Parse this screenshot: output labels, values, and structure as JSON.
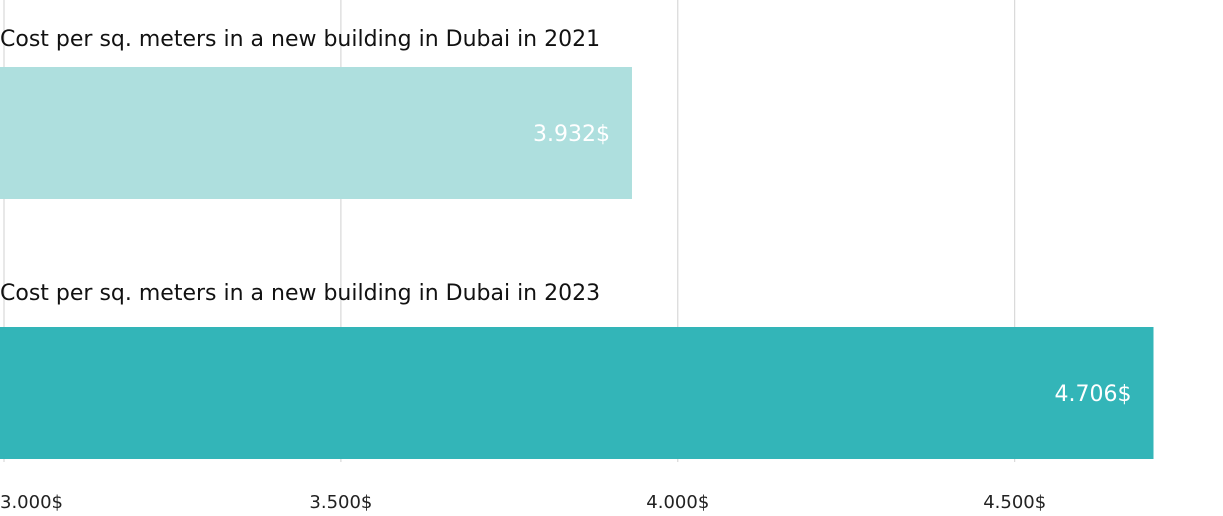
{
  "chart_data": {
    "type": "bar",
    "orientation": "horizontal",
    "categories": [
      "Cost per sq. meters in a new building in Dubai in 2021",
      "Cost per sq. meters in a new building in Dubai in 2023"
    ],
    "values": [
      3932,
      4706
    ],
    "value_labels": [
      "3.932$",
      "4.706$"
    ],
    "bar_colors": [
      "#aedfde",
      "#33b5b8"
    ],
    "title": "",
    "xlabel": "",
    "ylabel": "",
    "xlim": [
      3000,
      4800
    ],
    "xticks": [
      3000,
      3500,
      4000,
      4500
    ],
    "xtick_labels": [
      "3.000$",
      "3.500$",
      "4.000$",
      "4.500$"
    ],
    "grid": true,
    "legend": "none"
  }
}
